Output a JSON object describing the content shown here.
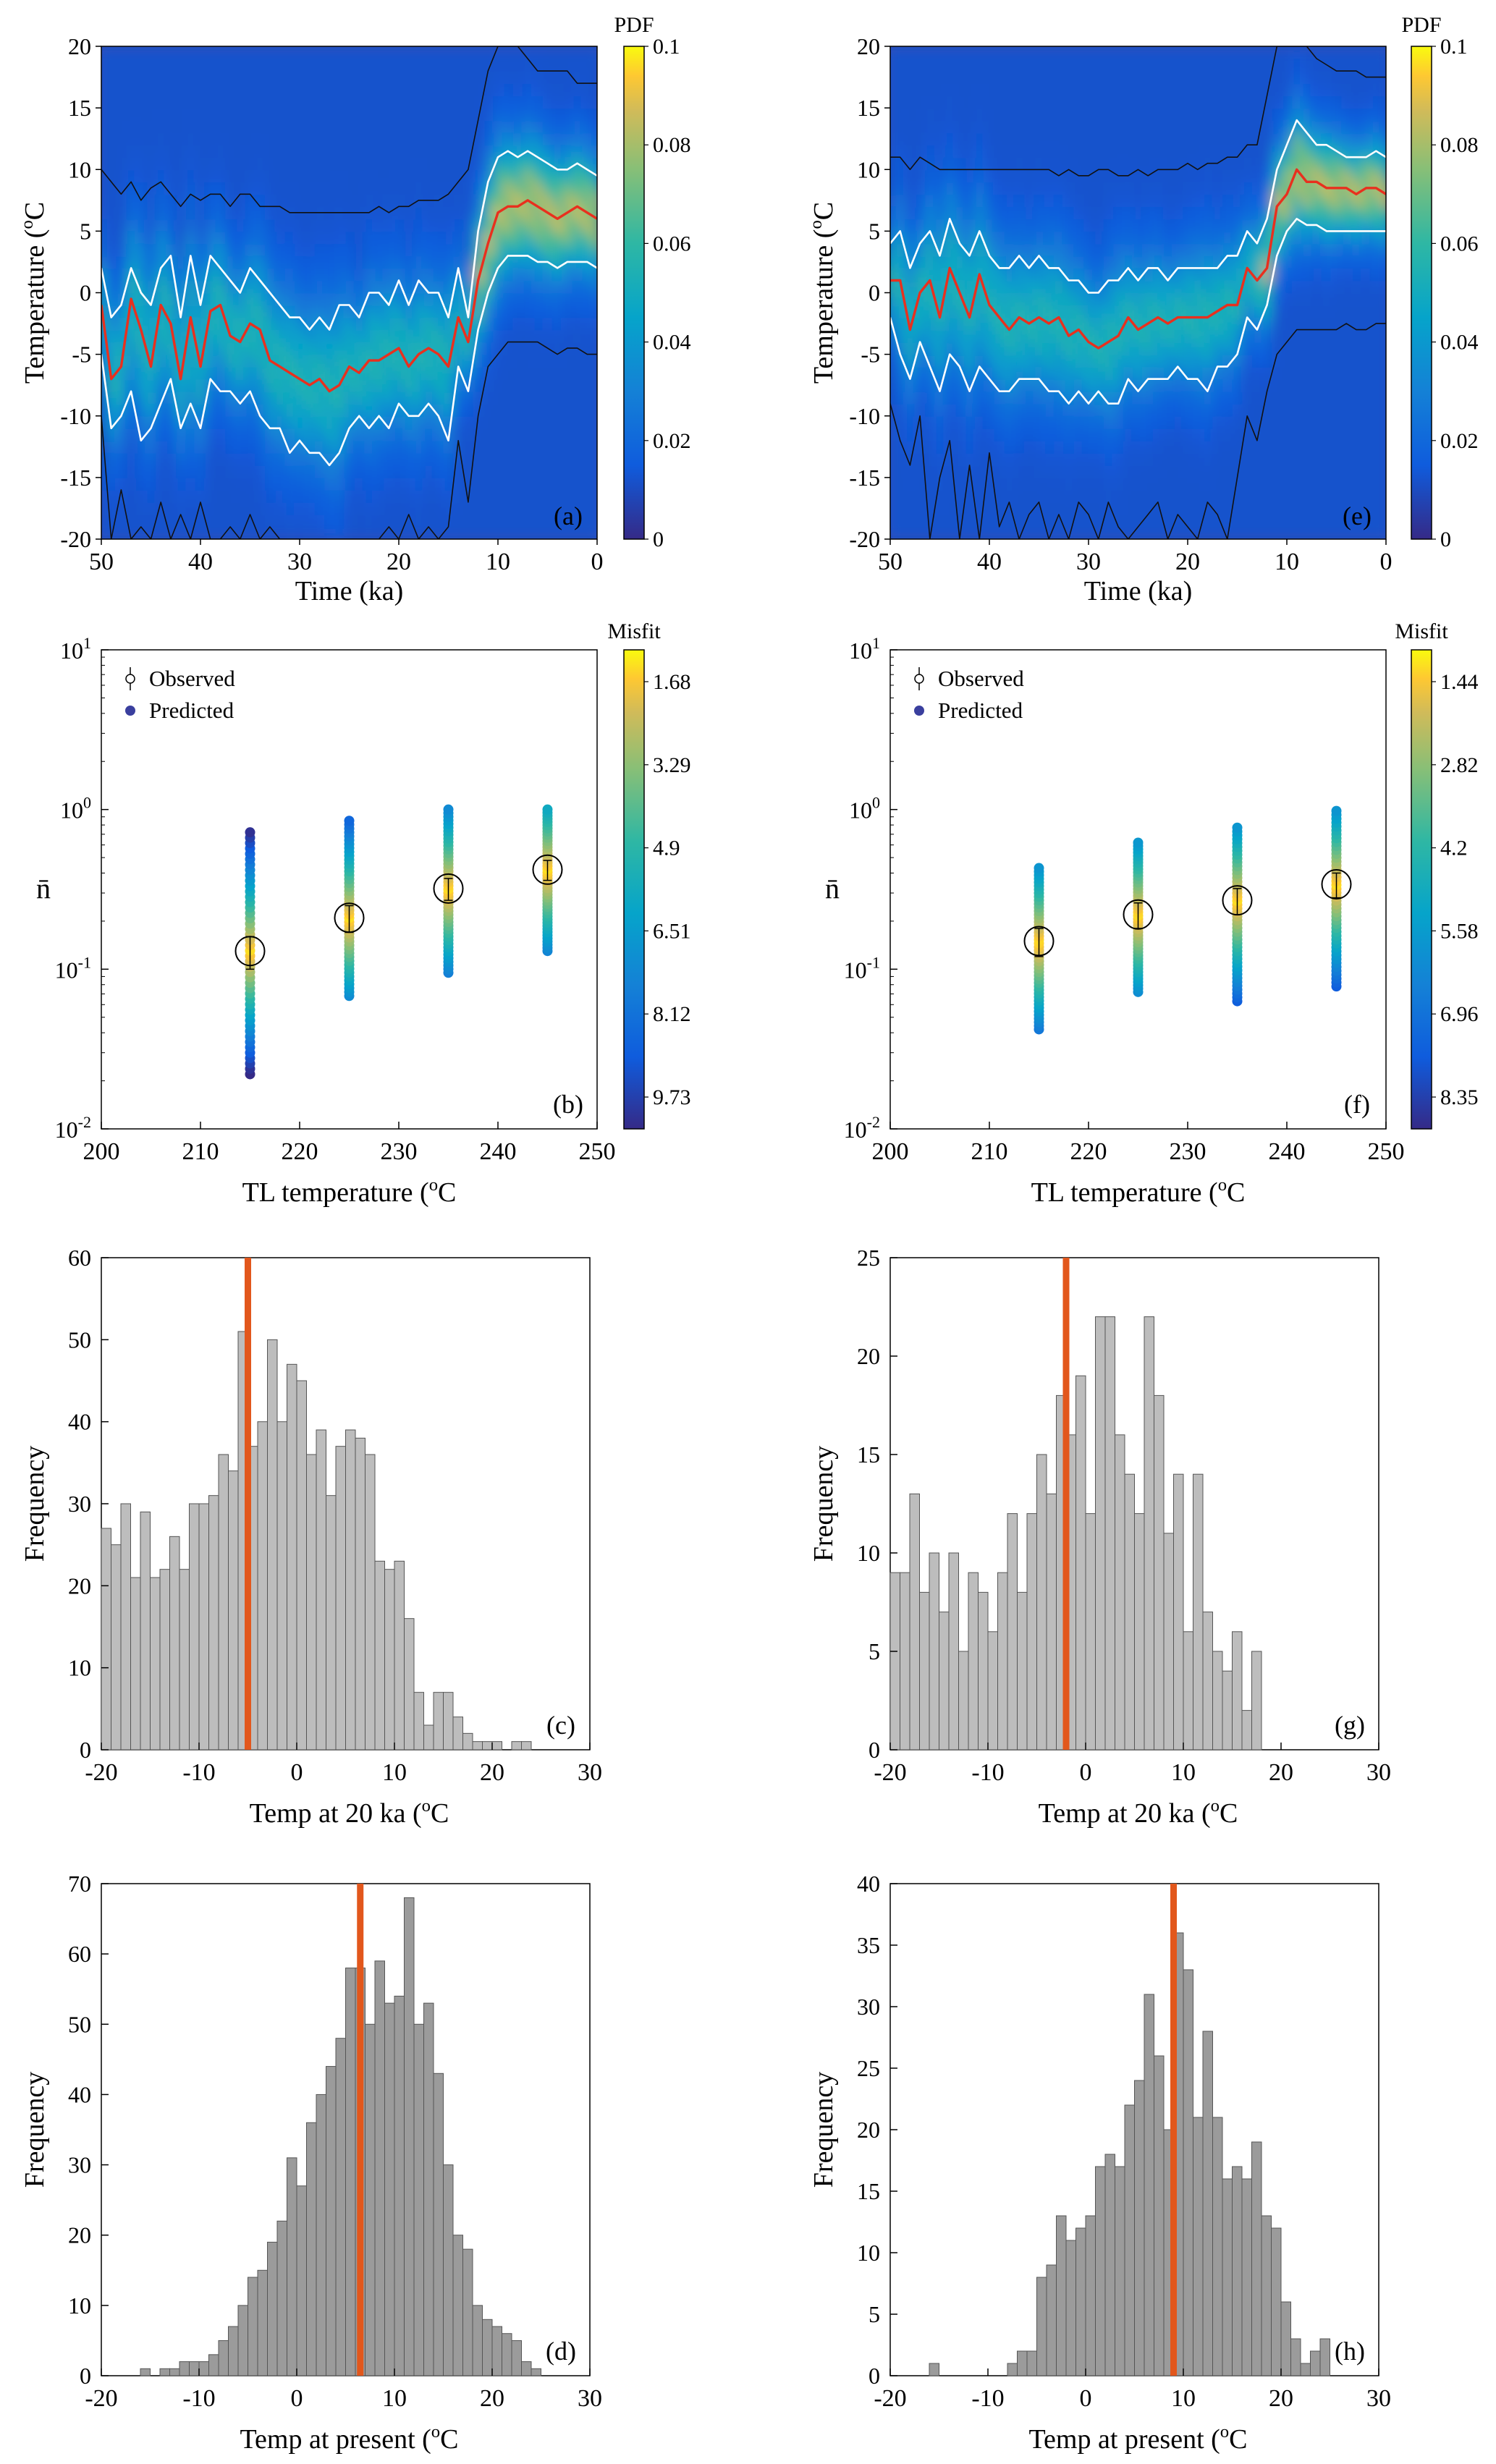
{
  "colors": {
    "orange": "#E2571C",
    "red": "#E8301E",
    "bar_light": "#BDBDBD",
    "bar_dark": "#9B9B9B",
    "dark_blue": "#3A3F9E",
    "bg_blue": "#3B4BB0"
  },
  "chart_data": [
    {
      "panel": "(a)",
      "type": "heatmap",
      "title": "",
      "xlabel": "Time (ka)",
      "ylabel": "Temperature (oC)",
      "xlim": [
        50,
        0
      ],
      "ylim": [
        -20,
        20
      ],
      "xticks": [
        50,
        40,
        30,
        20,
        10,
        0
      ],
      "yticks": [
        -20,
        -15,
        -10,
        -5,
        0,
        5,
        10,
        15,
        20
      ],
      "colorbar": {
        "label": "PDF",
        "ticks": [
          "0",
          "0.02",
          "0.04",
          "0.06",
          "0.08",
          "0.1"
        ]
      },
      "time": [
        50,
        49,
        48,
        47,
        46,
        45,
        44,
        43,
        42,
        41,
        40,
        39,
        38,
        37,
        36,
        35,
        34,
        33,
        32,
        31,
        30,
        29,
        28,
        27,
        26,
        25,
        24,
        23,
        22,
        21,
        20,
        19,
        18,
        17,
        16,
        15,
        14,
        13,
        12,
        11,
        10,
        9,
        8,
        7,
        6,
        5,
        4,
        3,
        2,
        1,
        0
      ],
      "median": [
        -1,
        -7,
        -6,
        -0.5,
        -3,
        -6,
        -1,
        -2.5,
        -7,
        -2,
        -6,
        -1.5,
        -1,
        -3.5,
        -4,
        -2.5,
        -3,
        -5.5,
        -6,
        -6.5,
        -7,
        -7.5,
        -7,
        -8,
        -7.5,
        -6,
        -6.5,
        -5.5,
        -5.5,
        -5,
        -4.5,
        -6,
        -5,
        -4.5,
        -5,
        -6,
        -2,
        -4,
        1,
        4,
        6.5,
        7,
        7,
        7.5,
        7,
        6.5,
        6,
        6.5,
        7,
        6.5,
        6
      ],
      "lower": [
        -5,
        -11,
        -10,
        -8,
        -12,
        -11,
        -9,
        -7,
        -11,
        -9,
        -11,
        -7,
        -8,
        -8,
        -9,
        -8,
        -10,
        -11,
        -11,
        -13,
        -12,
        -13,
        -13,
        -14,
        -13,
        -11,
        -10,
        -11,
        -10,
        -11,
        -9,
        -10,
        -10,
        -9,
        -10,
        -12,
        -6,
        -8,
        -3,
        0,
        2,
        3,
        3,
        3,
        2.5,
        2.5,
        2,
        2.5,
        2.5,
        2.5,
        2
      ],
      "upper": [
        2,
        -2,
        -1,
        2,
        0,
        -1,
        2,
        3,
        -2,
        3,
        -1,
        3,
        2,
        1,
        0,
        2,
        1,
        0,
        -1,
        -2,
        -2,
        -3,
        -2,
        -3,
        -1,
        -1,
        -2,
        0,
        0,
        -1,
        1,
        -1,
        1,
        0,
        0,
        -2,
        2,
        -2,
        5,
        9,
        11,
        11.5,
        11,
        11.5,
        11,
        10.5,
        10,
        10,
        10.5,
        10,
        9.5
      ],
      "outer_lower": [
        -10,
        -20,
        -16,
        -20,
        -19,
        -20,
        -17,
        -20,
        -18,
        -20,
        -17,
        -20,
        -20,
        -19,
        -20,
        -18,
        -20,
        -19,
        -20,
        -20,
        -20,
        -20,
        -20,
        -20,
        -20,
        -20,
        -20,
        -20,
        -20,
        -19,
        -20,
        -18,
        -20,
        -19,
        -20,
        -19,
        -12,
        -17,
        -10,
        -6,
        -5,
        -4,
        -4,
        -4,
        -4,
        -4.5,
        -5,
        -4.5,
        -4.5,
        -5,
        -5
      ],
      "outer_upper": [
        10,
        9,
        8,
        9,
        7.5,
        8.5,
        9,
        8,
        7,
        8,
        7.5,
        8,
        8,
        7,
        8,
        8,
        7,
        7,
        7,
        6.5,
        6.5,
        6.5,
        6.5,
        6.5,
        6.5,
        6.5,
        6.5,
        6.5,
        7,
        6.5,
        7,
        7,
        7.5,
        7.5,
        7.5,
        8,
        9,
        10,
        14,
        18,
        20,
        20,
        20,
        19,
        18,
        18,
        18,
        18,
        17,
        17,
        17
      ]
    },
    {
      "panel": "(e)",
      "type": "heatmap",
      "title": "",
      "xlabel": "Time (ka)",
      "ylabel": "Temperature (oC)",
      "xlim": [
        50,
        0
      ],
      "ylim": [
        -20,
        20
      ],
      "xticks": [
        50,
        40,
        30,
        20,
        10,
        0
      ],
      "yticks": [
        -20,
        -15,
        -10,
        -5,
        0,
        5,
        10,
        15,
        20
      ],
      "colorbar": {
        "label": "PDF",
        "ticks": [
          "0",
          "0.02",
          "0.04",
          "0.06",
          "0.08",
          "0.1"
        ]
      },
      "time": [
        50,
        49,
        48,
        47,
        46,
        45,
        44,
        43,
        42,
        41,
        40,
        39,
        38,
        37,
        36,
        35,
        34,
        33,
        32,
        31,
        30,
        29,
        28,
        27,
        26,
        25,
        24,
        23,
        22,
        21,
        20,
        19,
        18,
        17,
        16,
        15,
        14,
        13,
        12,
        11,
        10,
        9,
        8,
        7,
        6,
        5,
        4,
        3,
        2,
        1,
        0
      ],
      "median": [
        1,
        1,
        -3,
        0,
        1,
        -2,
        2,
        0,
        -2,
        1.5,
        -1,
        -2,
        -3,
        -2,
        -2.5,
        -2,
        -2.5,
        -2,
        -3.5,
        -3,
        -4,
        -4.5,
        -4,
        -3.5,
        -2,
        -3,
        -2.5,
        -2,
        -2.5,
        -2,
        -2,
        -2,
        -2,
        -1.5,
        -1,
        -1,
        2,
        1,
        2,
        7,
        8,
        10,
        9,
        9,
        8.5,
        8.5,
        8.5,
        8,
        8.5,
        8.5,
        8
      ],
      "lower": [
        -2,
        -5,
        -7,
        -4,
        -6,
        -8,
        -5,
        -6,
        -8,
        -6,
        -7,
        -8,
        -8,
        -7,
        -7,
        -7,
        -8,
        -8,
        -9,
        -8,
        -9,
        -8,
        -9,
        -9,
        -7,
        -8,
        -7,
        -7,
        -7,
        -6,
        -7,
        -7,
        -8,
        -6,
        -6,
        -5,
        -2,
        -3,
        -1,
        3,
        5,
        6,
        5.5,
        5.5,
        5,
        5,
        5,
        5,
        5,
        5,
        5
      ],
      "upper": [
        4,
        5,
        2,
        4,
        5,
        3,
        6,
        4,
        3,
        5,
        3,
        2,
        2,
        3,
        2,
        3,
        2,
        2,
        1,
        1,
        0,
        0,
        1,
        1,
        2,
        1,
        2,
        2,
        1,
        2,
        2,
        2,
        2,
        2,
        3,
        3,
        5,
        4,
        6,
        10,
        12,
        14,
        13,
        12,
        12,
        11.5,
        11,
        11,
        11,
        11.5,
        11
      ],
      "outer_lower": [
        -9,
        -12,
        -14,
        -10,
        -20,
        -15,
        -12,
        -20,
        -14,
        -20,
        -13,
        -19,
        -17,
        -20,
        -18,
        -17,
        -20,
        -18,
        -20,
        -17,
        -18,
        -20,
        -17,
        -19,
        -20,
        -19,
        -18,
        -17,
        -20,
        -18,
        -19,
        -20,
        -17,
        -18,
        -20,
        -15,
        -10,
        -12,
        -8,
        -5,
        -4,
        -3,
        -3,
        -3,
        -3,
        -3,
        -2.5,
        -3,
        -3,
        -2.5,
        -2.5
      ],
      "outer_upper": [
        11,
        11,
        10,
        11,
        10.5,
        10,
        10,
        10,
        10,
        10,
        10,
        10,
        10,
        10,
        10,
        10,
        10,
        9.5,
        10,
        9.5,
        9.5,
        10,
        10,
        9.5,
        9.5,
        10,
        9.5,
        10,
        10,
        10,
        10.5,
        10,
        10.5,
        10.5,
        11,
        11,
        12,
        12,
        16,
        20,
        20,
        20,
        20,
        19,
        18.5,
        18,
        18,
        18,
        17.5,
        17.5,
        17.5
      ]
    },
    {
      "panel": "(b)",
      "type": "scatter",
      "title": "",
      "xlabel": "TL temperature (oC)",
      "ylabel": "n̄",
      "xlim": [
        200,
        250
      ],
      "ylim": [
        0.01,
        10
      ],
      "yscale": "log",
      "xticks": [
        200,
        210,
        220,
        230,
        240,
        250
      ],
      "legend": [
        "Observed",
        "Predicted"
      ],
      "legend_position": "top-left",
      "colorbar": {
        "label": "Misfit",
        "ticks": [
          "1.68",
          "3.29",
          "4.9",
          "6.51",
          "8.12",
          "9.73"
        ]
      },
      "observed": [
        {
          "x": 215,
          "y": 0.13,
          "err": 0.03
        },
        {
          "x": 225,
          "y": 0.21,
          "err": 0.04
        },
        {
          "x": 235,
          "y": 0.32,
          "err": 0.05
        },
        {
          "x": 245,
          "y": 0.42,
          "err": 0.06
        }
      ],
      "predicted_range": [
        {
          "x": 215,
          "min": 0.022,
          "max": 0.72
        },
        {
          "x": 225,
          "min": 0.068,
          "max": 0.85
        },
        {
          "x": 235,
          "min": 0.095,
          "max": 1.0
        },
        {
          "x": 245,
          "min": 0.13,
          "max": 1.0
        }
      ]
    },
    {
      "panel": "(f)",
      "type": "scatter",
      "title": "",
      "xlabel": "TL temperature (oC)",
      "ylabel": "n̄",
      "xlim": [
        200,
        250
      ],
      "ylim": [
        0.01,
        10
      ],
      "yscale": "log",
      "xticks": [
        200,
        210,
        220,
        230,
        240,
        250
      ],
      "legend": [
        "Observed",
        "Predicted"
      ],
      "legend_position": "top-left",
      "colorbar": {
        "label": "Misfit",
        "ticks": [
          "1.44",
          "2.82",
          "4.2",
          "5.58",
          "6.96",
          "8.35"
        ]
      },
      "observed": [
        {
          "x": 215,
          "y": 0.15,
          "err": 0.03
        },
        {
          "x": 225,
          "y": 0.22,
          "err": 0.04
        },
        {
          "x": 235,
          "y": 0.27,
          "err": 0.05
        },
        {
          "x": 245,
          "y": 0.34,
          "err": 0.06
        }
      ],
      "predicted_range": [
        {
          "x": 215,
          "min": 0.042,
          "max": 0.43
        },
        {
          "x": 225,
          "min": 0.072,
          "max": 0.62
        },
        {
          "x": 235,
          "min": 0.063,
          "max": 0.77
        },
        {
          "x": 245,
          "min": 0.078,
          "max": 0.98
        }
      ]
    },
    {
      "panel": "(c)",
      "type": "bar",
      "title": "",
      "xlabel": "Temp at 20 ka (oC)",
      "ylabel": "Frequency",
      "xlim": [
        -20,
        30
      ],
      "ylim": [
        0,
        60
      ],
      "xticks": [
        -20,
        -10,
        0,
        10,
        20,
        30
      ],
      "yticks": [
        0,
        10,
        20,
        30,
        40,
        50,
        60
      ],
      "bin_start": -20,
      "bin_width": 1,
      "values": [
        27,
        25,
        30,
        21,
        29,
        21,
        22,
        26,
        22,
        30,
        30,
        31,
        36,
        34,
        51,
        37,
        40,
        50,
        40,
        47,
        45,
        36,
        39,
        31,
        37,
        39,
        38,
        36,
        23,
        22,
        23,
        16,
        7,
        3,
        7,
        7,
        4,
        2,
        1,
        1,
        1,
        0,
        1,
        1,
        0,
        0,
        0,
        0,
        0,
        0
      ],
      "marker": -5,
      "marker_color": "#E2571C",
      "bar_color": "#BDBDBD"
    },
    {
      "panel": "(g)",
      "type": "bar",
      "title": "",
      "xlabel": "Temp at 20 ka (oC)",
      "ylabel": "Frequency",
      "xlim": [
        -20,
        30
      ],
      "ylim": [
        0,
        25
      ],
      "xticks": [
        -20,
        -10,
        0,
        10,
        20,
        30
      ],
      "yticks": [
        0,
        5,
        10,
        15,
        20,
        25
      ],
      "bin_start": -20,
      "bin_width": 1,
      "values": [
        9,
        9,
        13,
        8,
        10,
        7,
        10,
        5,
        9,
        8,
        6,
        9,
        12,
        8,
        12,
        15,
        13,
        18,
        16,
        19,
        12,
        22,
        22,
        16,
        14,
        12,
        22,
        18,
        11,
        14,
        6,
        14,
        7,
        5,
        4,
        6,
        2,
        5,
        0,
        0,
        0,
        0,
        0,
        0,
        0,
        0,
        0,
        0,
        0,
        0
      ],
      "marker": -2,
      "marker_color": "#E2571C",
      "bar_color": "#BDBDBD"
    },
    {
      "panel": "(d)",
      "type": "bar",
      "title": "",
      "xlabel": "Temp at present (oC)",
      "ylabel": "Frequency",
      "xlim": [
        -20,
        30
      ],
      "ylim": [
        0,
        70
      ],
      "xticks": [
        -20,
        -10,
        0,
        10,
        20,
        30
      ],
      "yticks": [
        0,
        10,
        20,
        30,
        40,
        50,
        60,
        70
      ],
      "bin_start": -20,
      "bin_width": 1,
      "values": [
        0,
        0,
        0,
        0,
        1,
        0,
        1,
        1,
        2,
        2,
        2,
        3,
        5,
        7,
        10,
        14,
        15,
        19,
        22,
        31,
        27,
        36,
        40,
        44,
        48,
        58,
        58,
        50,
        59,
        53,
        54,
        68,
        50,
        53,
        43,
        30,
        20,
        18,
        10,
        8,
        7,
        6,
        5,
        2,
        1,
        0,
        0,
        0,
        0,
        0
      ],
      "marker": 6.5,
      "marker_color": "#E2571C",
      "bar_color": "#9B9B9B"
    },
    {
      "panel": "(h)",
      "type": "bar",
      "title": "",
      "xlabel": "Temp at present (oC)",
      "ylabel": "Frequency",
      "xlim": [
        -20,
        30
      ],
      "ylim": [
        0,
        40
      ],
      "xticks": [
        -20,
        -10,
        0,
        10,
        20,
        30
      ],
      "yticks": [
        0,
        5,
        10,
        15,
        20,
        25,
        30,
        35,
        40
      ],
      "bin_start": -20,
      "bin_width": 1,
      "values": [
        0,
        0,
        0,
        0,
        1,
        0,
        0,
        0,
        0,
        0,
        0,
        0,
        1,
        2,
        2,
        8,
        9,
        13,
        11,
        12,
        13,
        17,
        18,
        17,
        22,
        24,
        31,
        26,
        20,
        36,
        33,
        21,
        28,
        21,
        16,
        17,
        16,
        19,
        13,
        12,
        6,
        3,
        1,
        2,
        3,
        0,
        0,
        0,
        0,
        0
      ],
      "marker": 9,
      "marker_color": "#E2571C",
      "bar_color": "#9B9B9B"
    }
  ]
}
